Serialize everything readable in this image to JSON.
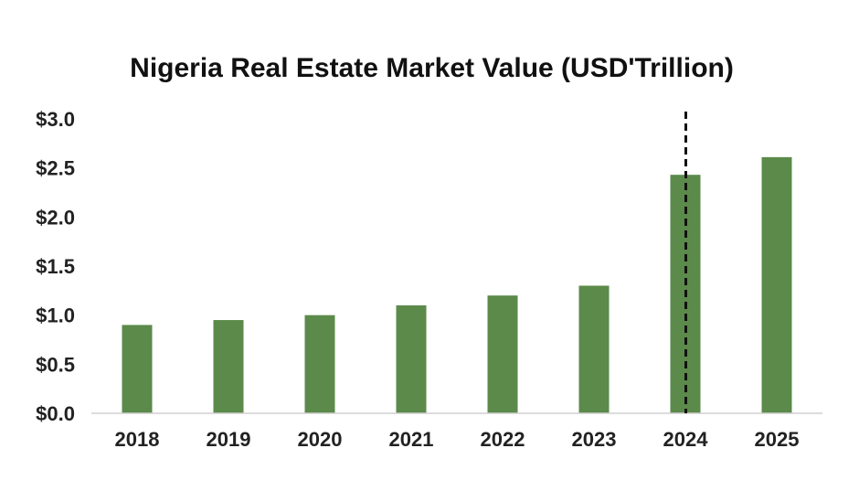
{
  "chart_data": {
    "type": "bar",
    "title": "Nigeria Real Estate Market Value (USD'Trillion)",
    "categories": [
      "2018",
      "2019",
      "2020",
      "2021",
      "2022",
      "2023",
      "2024",
      "2025"
    ],
    "values": [
      0.9,
      0.95,
      1.0,
      1.1,
      1.2,
      1.3,
      2.43,
      2.61
    ],
    "xlabel": "",
    "ylabel": "",
    "ylim": [
      0,
      3.0
    ],
    "yticks": [
      0.0,
      0.5,
      1.0,
      1.5,
      2.0,
      2.5,
      3.0
    ],
    "ytick_labels": [
      "$0.0",
      "$0.5",
      "$1.0",
      "$1.5",
      "$2.0",
      "$2.5",
      "$3.0"
    ],
    "grid": false,
    "legend": "none",
    "bar_color": "#5b8a4a",
    "annotations": [
      {
        "type": "vertical-dashed-line",
        "category": "2024",
        "color": "#111111"
      }
    ]
  }
}
